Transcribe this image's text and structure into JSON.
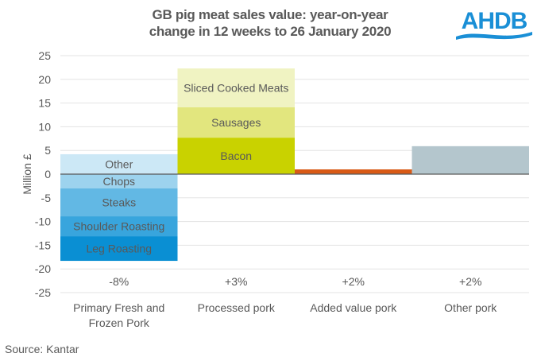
{
  "logo": {
    "text": "AHDB",
    "color": "#1a8fd6"
  },
  "source": "Source: Kantar",
  "chart_data": {
    "type": "bar",
    "stacked": true,
    "title": "GB pig meat sales value: year-on-year change in 12 weeks to 26 January 2020",
    "title_lines": [
      "GB pig meat sales value: year-on-year",
      "change in 12 weeks to 26 January 2020"
    ],
    "xlabel": "",
    "ylabel": "Million £",
    "ylim": [
      -25,
      25
    ],
    "yticks": [
      25,
      20,
      15,
      10,
      5,
      0,
      -5,
      -10,
      -15,
      -20,
      -25
    ],
    "grid": true,
    "legend": "none (segments labelled inline)",
    "categories": [
      "Primary Fresh and Frozen Pork",
      "Processed pork",
      "Added value pork",
      "Other pork"
    ],
    "category_label_lines": [
      [
        "Primary Fresh and",
        "Frozen Pork"
      ],
      [
        "Processed pork"
      ],
      [
        "Added value pork"
      ],
      [
        "Other pork"
      ]
    ],
    "percent_change": [
      "-8%",
      "+3%",
      "+2%",
      "+2%"
    ],
    "stacks": [
      {
        "category": "Primary Fresh and Frozen Pork",
        "segments": [
          {
            "name": "Other",
            "value": 4.2,
            "color": "#cce8f6",
            "labelled": true
          },
          {
            "name": "Chops",
            "value": -3.0,
            "color": "#9dd3ee",
            "labelled": true
          },
          {
            "name": "Steaks",
            "value": -5.9,
            "color": "#62b8e4",
            "labelled": true
          },
          {
            "name": "Shoulder Roasting",
            "value": -4.2,
            "color": "#38a5dd",
            "labelled": true
          },
          {
            "name": "Leg Roasting",
            "value": -5.2,
            "color": "#0a8fd3",
            "labelled": true
          }
        ]
      },
      {
        "category": "Processed pork",
        "segments": [
          {
            "name": "Bacon",
            "value": 7.7,
            "color": "#c9d200",
            "labelled": true
          },
          {
            "name": "Sausages",
            "value": 6.4,
            "color": "#e2e67e",
            "labelled": true
          },
          {
            "name": "Sliced Cooked Meats",
            "value": 8.2,
            "color": "#f0f3c2",
            "labelled": true
          }
        ]
      },
      {
        "category": "Added value pork",
        "segments": [
          {
            "name": "Added value pork",
            "value": 1.0,
            "color": "#d95a16",
            "labelled": false
          }
        ]
      },
      {
        "category": "Other pork",
        "segments": [
          {
            "name": "Other pork",
            "value": 5.9,
            "color": "#b4c6cd",
            "labelled": false
          }
        ]
      }
    ]
  }
}
